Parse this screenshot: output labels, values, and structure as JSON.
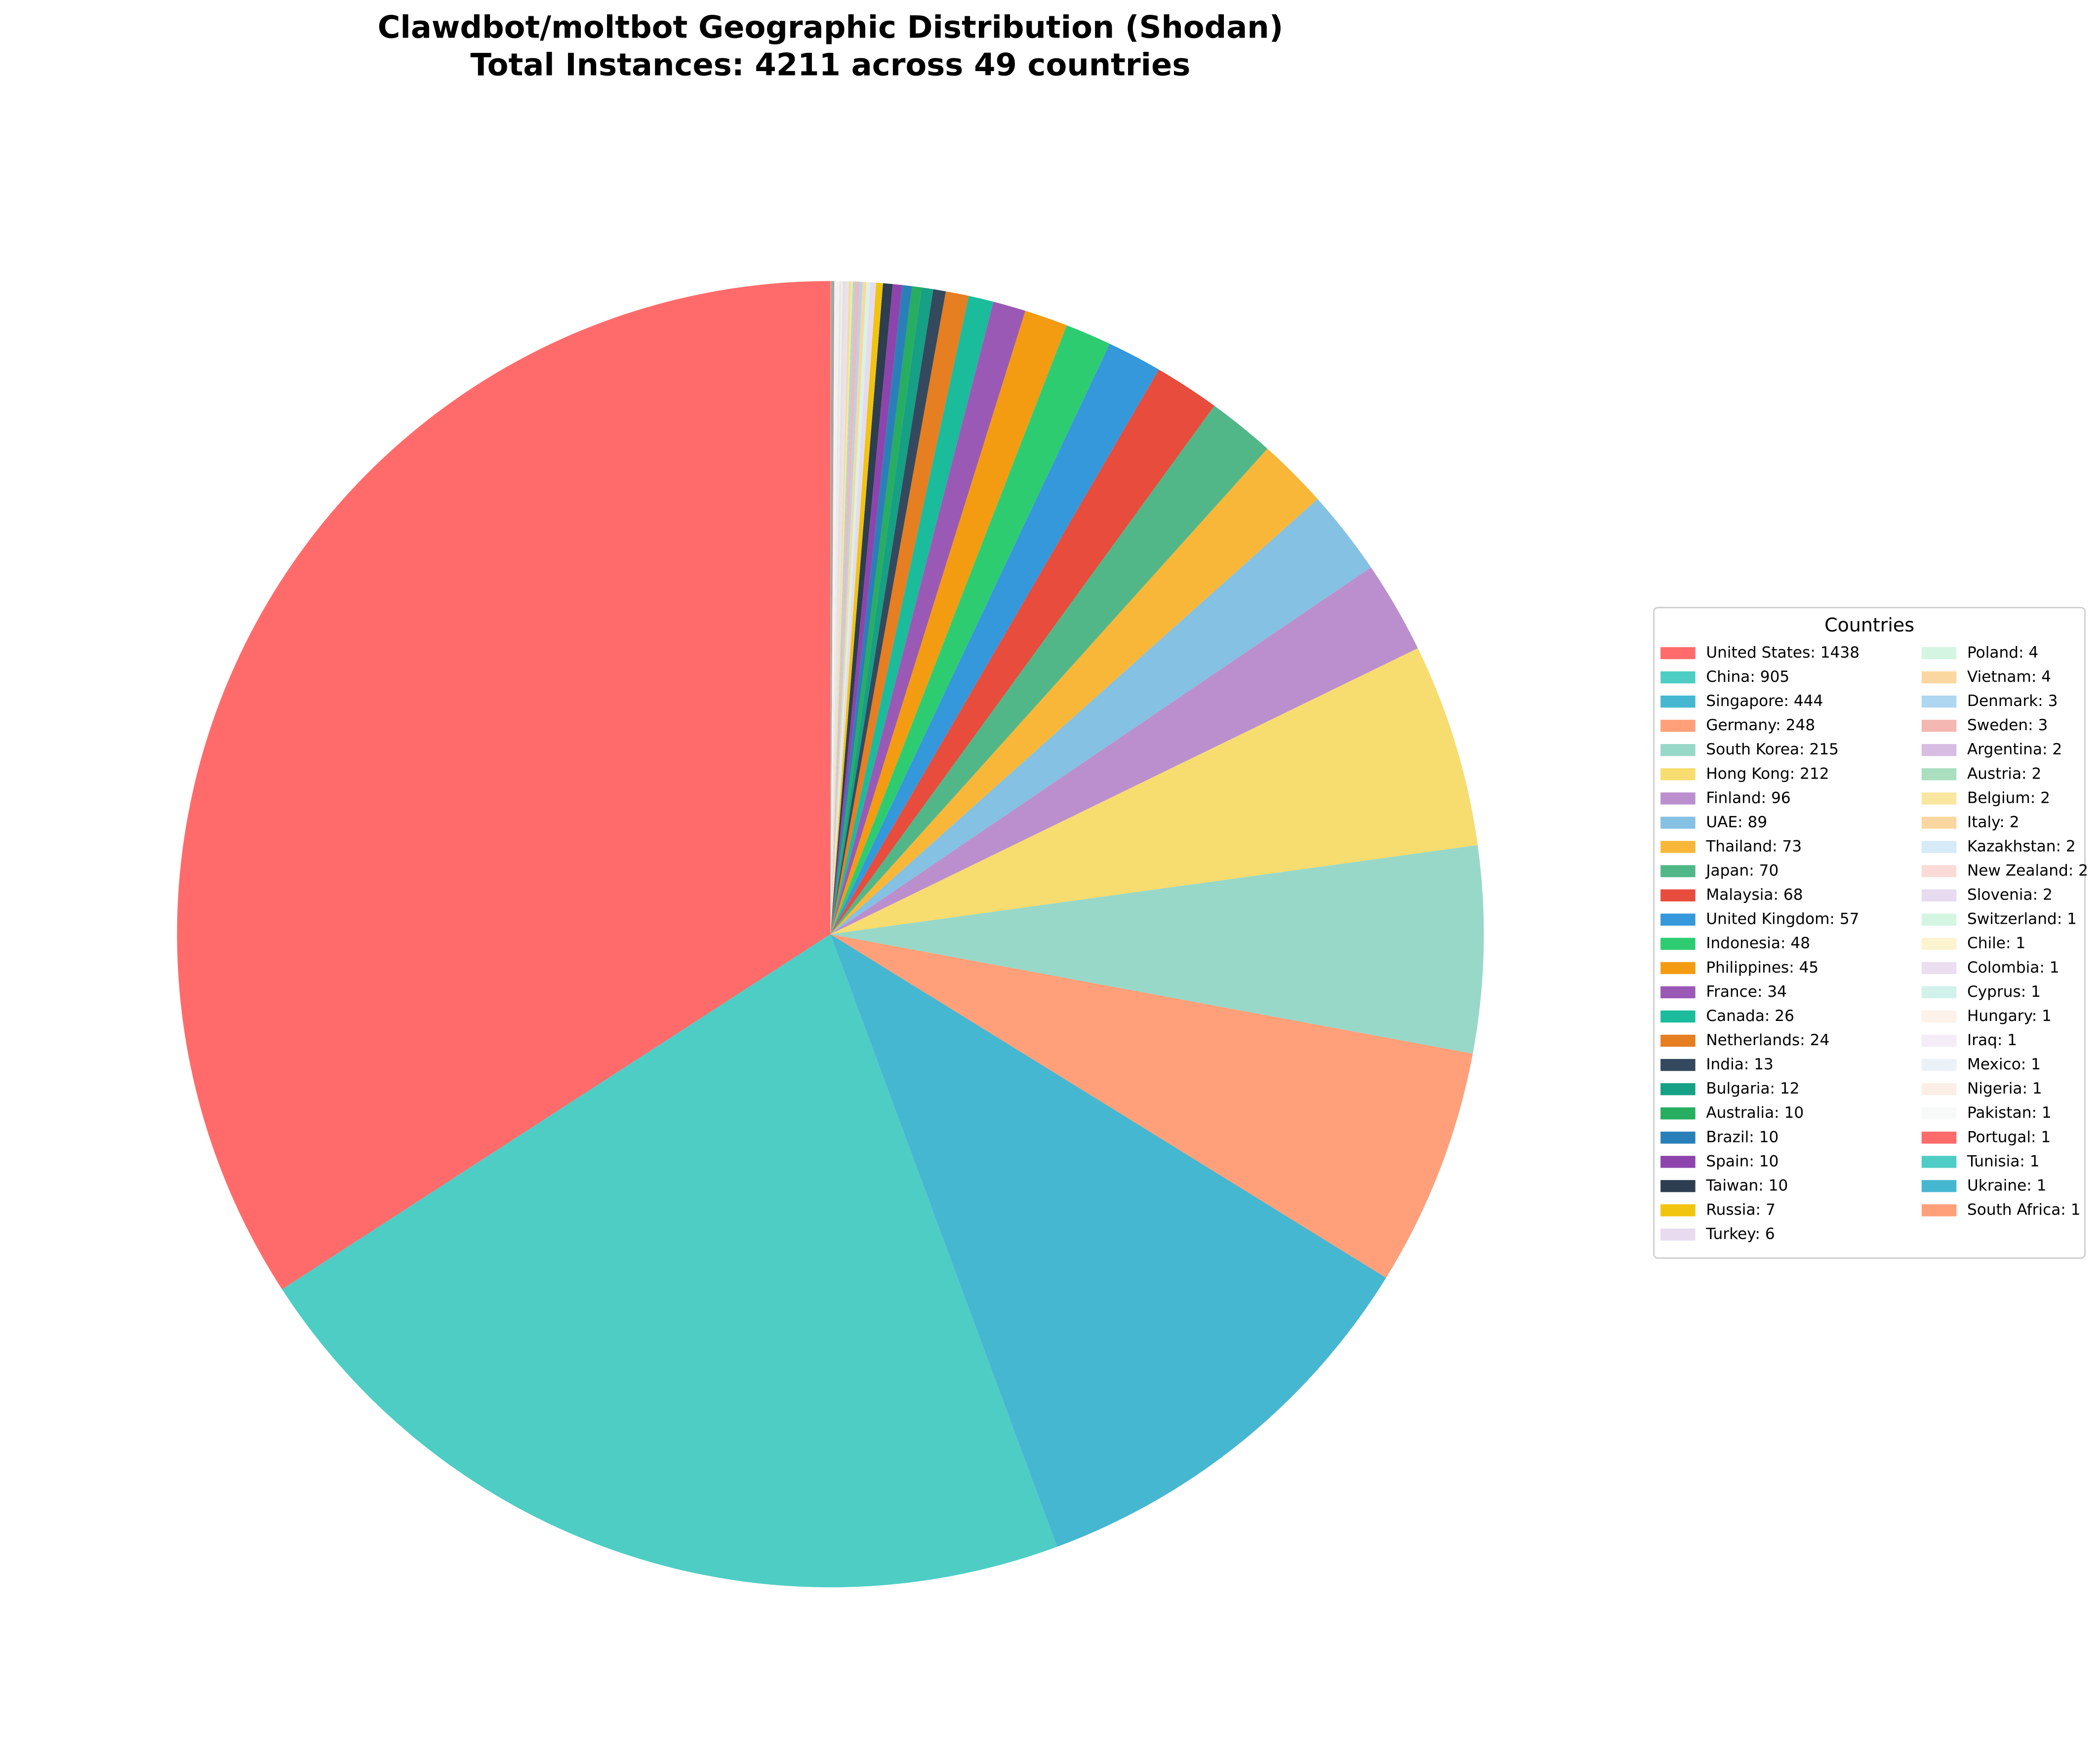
{
  "chart_data": {
    "type": "pie",
    "title": "Clawdbot/moltbot Geographic Distribution (Shodan)",
    "subtitle": "Total Instances: 4211 across 49 countries",
    "start_angle": 90,
    "direction": "counterclockwise",
    "legend": {
      "title": "Countries",
      "loc": "center right",
      "ncol": 2
    },
    "categories": [
      "United States: 1438",
      "China: 905",
      "Singapore: 444",
      "Germany: 248",
      "South Korea: 215",
      "Hong Kong: 212",
      "Finland: 96",
      "UAE: 89",
      "Thailand: 73",
      "Japan: 70",
      "Malaysia: 68",
      "United Kingdom: 57",
      "Indonesia: 48",
      "Philippines: 45",
      "France: 34",
      "Canada: 26",
      "Netherlands: 24",
      "India: 13",
      "Bulgaria: 12",
      "Australia: 10",
      "Brazil: 10",
      "Spain: 10",
      "Taiwan: 10",
      "Russia: 7",
      "Turkey: 6",
      "Poland: 4",
      "Vietnam: 4",
      "Denmark: 3",
      "Sweden: 3",
      "Argentina: 2",
      "Austria: 2",
      "Belgium: 2",
      "Italy: 2",
      "Kazakhstan: 2",
      "New Zealand: 2",
      "Slovenia: 2",
      "Switzerland: 1",
      "Chile: 1",
      "Colombia: 1",
      "Cyprus: 1",
      "Hungary: 1",
      "Iraq: 1",
      "Mexico: 1",
      "Nigeria: 1",
      "Pakistan: 1",
      "Portugal: 1",
      "Tunisia: 1",
      "Ukraine: 1",
      "South Africa: 1"
    ],
    "values": [
      1438,
      905,
      444,
      248,
      215,
      212,
      96,
      89,
      73,
      70,
      68,
      57,
      48,
      45,
      34,
      26,
      24,
      13,
      12,
      10,
      10,
      10,
      10,
      7,
      6,
      4,
      4,
      3,
      3,
      2,
      2,
      2,
      2,
      2,
      2,
      2,
      1,
      1,
      1,
      1,
      1,
      1,
      1,
      1,
      1,
      1,
      1,
      1,
      1
    ],
    "colors": [
      "#ff6b6b",
      "#4ecdc4",
      "#45b7d1",
      "#ffa07a",
      "#98d8c8",
      "#f7dc6f",
      "#bb8fce",
      "#85c1e2",
      "#f8b739",
      "#52b788",
      "#e74c3c",
      "#3498db",
      "#2ecc71",
      "#f39c12",
      "#9b59b6",
      "#1abc9c",
      "#e67e22",
      "#34495e",
      "#16a085",
      "#27ae60",
      "#2980b9",
      "#8e44ad",
      "#2c3e50",
      "#f1c40f",
      "#e8daef",
      "#d5f5e3",
      "#fad7a0",
      "#aed6f1",
      "#f5b7b1",
      "#d7bde2",
      "#a9dfbf",
      "#f9e79f",
      "#fad7a0",
      "#d6eaf8",
      "#fadbd8",
      "#e8daef",
      "#d5f5e3",
      "#fcf3cf",
      "#ebdef0",
      "#d1f2eb",
      "#fdf2e9",
      "#f4ecf7",
      "#eaf2f8",
      "#fbeee6",
      "#f8f9f9",
      "#ff6b6b",
      "#4ecdc4",
      "#45b7d1",
      "#ffa07a"
    ]
  }
}
